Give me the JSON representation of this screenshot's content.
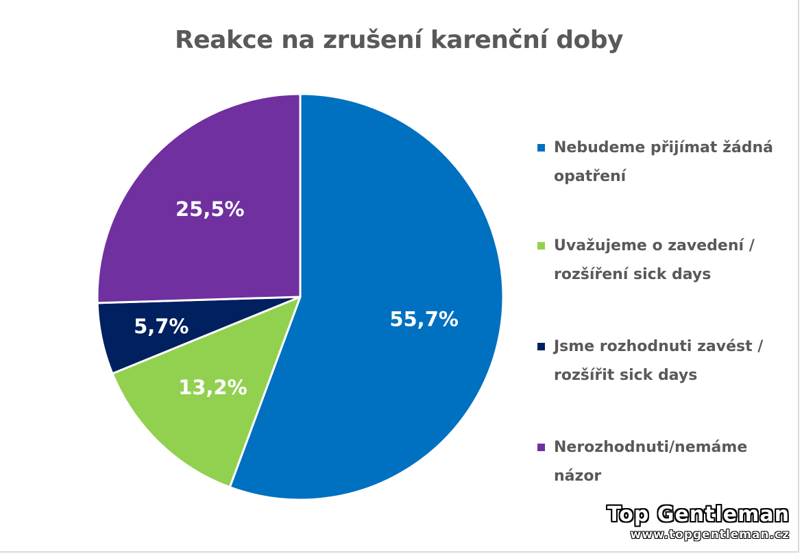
{
  "chart_data": {
    "type": "pie",
    "title": "Reakce na zrušení karenční doby",
    "categories": [
      "Nebudeme přijímat žádná opatření",
      "Uvažujeme o zavedení / rozšíření sick days",
      "Jsme rozhodnuti zavést / rozšířit sick days",
      "Nerozhodnuti/nemáme názor"
    ],
    "values": [
      55.7,
      13.2,
      5.7,
      25.5
    ],
    "value_labels": [
      "55,7%",
      "13,2%",
      "5,7%",
      "25,5%"
    ],
    "colors": [
      "#0070c0",
      "#92d050",
      "#002060",
      "#7030a0"
    ],
    "legend_placement": "right",
    "legend_lines": [
      [
        "Nebudeme přijímat žádná",
        "opatření"
      ],
      [
        "Uvažujeme o zavedení /",
        "rozšíření sick days"
      ],
      [
        "Jsme rozhodnuti zavést /",
        "rozšířit sick days"
      ],
      [
        "Nerozhodnuti/nemáme",
        "názor"
      ]
    ]
  },
  "watermark": {
    "brand": "Top Gentleman",
    "url": "www.topgentleman.cz"
  }
}
